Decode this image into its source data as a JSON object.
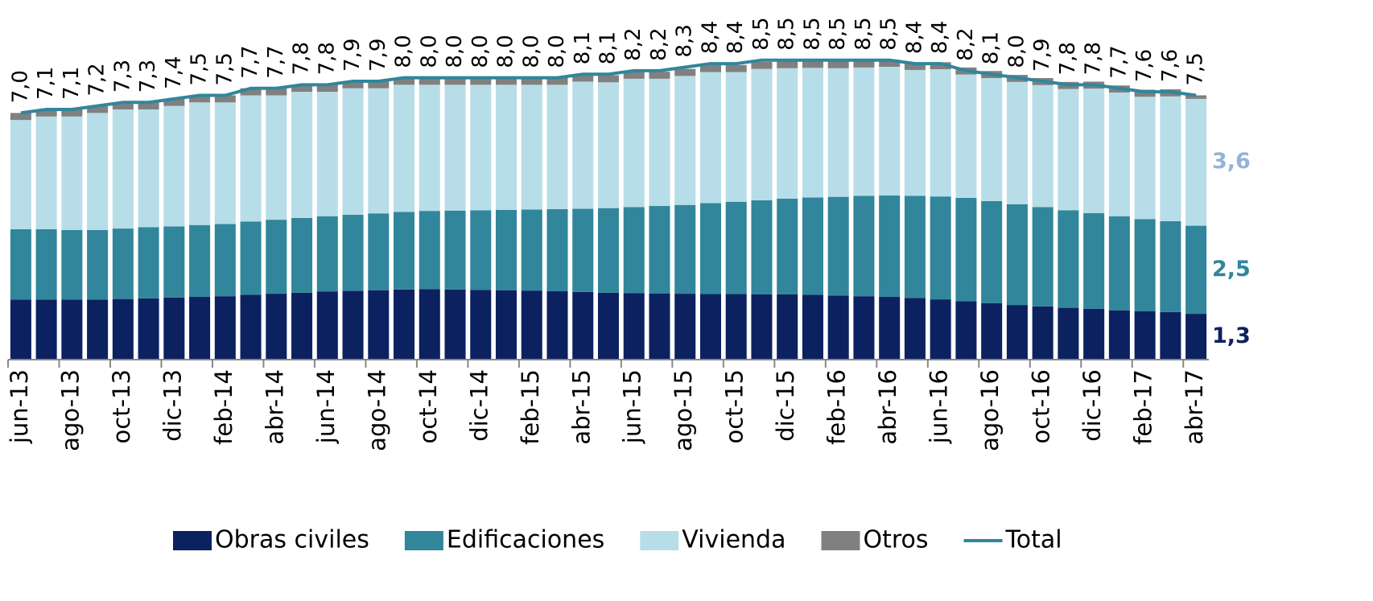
{
  "chart_data": {
    "type": "stacked_bar",
    "categories": [
      "jun-13",
      null,
      "ago-13",
      null,
      "oct-13",
      null,
      "dic-13",
      null,
      "feb-14",
      null,
      "abr-14",
      null,
      "jun-14",
      null,
      "ago-14",
      null,
      "oct-14",
      null,
      "dic-14",
      null,
      "feb-15",
      null,
      "abr-15",
      null,
      "jun-15",
      null,
      "ago-15",
      null,
      "oct-15",
      null,
      "dic-15",
      null,
      "feb-16",
      null,
      "abr-16",
      null,
      "jun-16",
      null,
      "ago-16",
      null,
      "oct-16",
      null,
      "dic-16",
      null,
      "feb-17",
      null,
      "abr-17"
    ],
    "series": [
      {
        "name": "Obras civiles",
        "color": "#0c2160",
        "values": [
          1.7,
          1.7,
          1.7,
          1.7,
          1.72,
          1.74,
          1.76,
          1.78,
          1.8,
          1.84,
          1.87,
          1.9,
          1.93,
          1.95,
          1.97,
          1.99,
          2.0,
          1.99,
          1.98,
          1.97,
          1.96,
          1.94,
          1.92,
          1.9,
          1.89,
          1.88,
          1.87,
          1.86,
          1.86,
          1.85,
          1.85,
          1.84,
          1.82,
          1.8,
          1.78,
          1.75,
          1.71,
          1.66,
          1.6,
          1.55,
          1.51,
          1.47,
          1.44,
          1.4,
          1.37,
          1.35,
          1.3
        ],
        "value_labels": [
          null,
          null,
          null,
          null,
          null,
          null,
          null,
          null,
          null,
          null,
          null,
          null,
          null,
          null,
          null,
          null,
          null,
          null,
          null,
          null,
          null,
          null,
          null,
          null,
          null,
          null,
          null,
          null,
          null,
          null,
          null,
          null,
          null,
          null,
          null,
          null,
          null,
          null,
          null,
          null,
          null,
          null,
          null,
          null,
          null,
          null,
          "1,3"
        ]
      },
      {
        "name": "Edificaciones",
        "color": "#31869b",
        "values": [
          2.0,
          2.0,
          1.98,
          1.98,
          2.0,
          2.02,
          2.02,
          2.04,
          2.05,
          2.08,
          2.1,
          2.12,
          2.14,
          2.16,
          2.18,
          2.2,
          2.22,
          2.24,
          2.26,
          2.28,
          2.3,
          2.33,
          2.36,
          2.4,
          2.44,
          2.48,
          2.52,
          2.58,
          2.62,
          2.67,
          2.72,
          2.76,
          2.8,
          2.85,
          2.88,
          2.9,
          2.92,
          2.93,
          2.9,
          2.86,
          2.82,
          2.77,
          2.72,
          2.67,
          2.62,
          2.58,
          2.5
        ],
        "value_labels": [
          null,
          null,
          null,
          null,
          null,
          null,
          null,
          null,
          null,
          null,
          null,
          null,
          null,
          null,
          null,
          null,
          null,
          null,
          null,
          null,
          null,
          null,
          null,
          null,
          null,
          null,
          null,
          null,
          null,
          null,
          null,
          null,
          null,
          null,
          null,
          null,
          null,
          null,
          null,
          null,
          null,
          null,
          null,
          null,
          null,
          null,
          "2,5"
        ]
      },
      {
        "name": "Vivienda",
        "color": "#b7dde8",
        "label_color": "#95b3d7",
        "values": [
          3.1,
          3.2,
          3.22,
          3.32,
          3.38,
          3.34,
          3.42,
          3.48,
          3.45,
          3.58,
          3.53,
          3.58,
          3.53,
          3.59,
          3.55,
          3.61,
          3.58,
          3.57,
          3.56,
          3.55,
          3.54,
          3.53,
          3.61,
          3.57,
          3.64,
          3.61,
          3.66,
          3.72,
          3.68,
          3.73,
          3.7,
          3.68,
          3.65,
          3.64,
          3.65,
          3.57,
          3.61,
          3.5,
          3.49,
          3.47,
          3.46,
          3.44,
          3.53,
          3.51,
          3.47,
          3.54,
          3.6
        ],
        "value_labels": [
          null,
          null,
          null,
          null,
          null,
          null,
          null,
          null,
          null,
          null,
          null,
          null,
          null,
          null,
          null,
          null,
          null,
          null,
          null,
          null,
          null,
          null,
          null,
          null,
          null,
          null,
          null,
          null,
          null,
          null,
          null,
          null,
          null,
          null,
          null,
          null,
          null,
          null,
          null,
          null,
          null,
          null,
          null,
          null,
          null,
          null,
          "3,6"
        ]
      },
      {
        "name": "Otros",
        "color": "#808080",
        "values": [
          0.2,
          0.2,
          0.2,
          0.2,
          0.2,
          0.2,
          0.2,
          0.2,
          0.2,
          0.2,
          0.2,
          0.2,
          0.2,
          0.2,
          0.2,
          0.2,
          0.2,
          0.2,
          0.2,
          0.2,
          0.2,
          0.2,
          0.2,
          0.2,
          0.2,
          0.2,
          0.2,
          0.2,
          0.2,
          0.2,
          0.2,
          0.2,
          0.2,
          0.2,
          0.2,
          0.2,
          0.2,
          0.2,
          0.2,
          0.2,
          0.2,
          0.2,
          0.2,
          0.2,
          0.2,
          0.2,
          0.1
        ]
      },
      {
        "name": "Total",
        "color": "#31869b",
        "type": "line",
        "values": [
          7.0,
          7.1,
          7.1,
          7.2,
          7.3,
          7.3,
          7.4,
          7.5,
          7.5,
          7.7,
          7.7,
          7.8,
          7.8,
          7.9,
          7.9,
          8.0,
          8.0,
          8.0,
          8.0,
          8.0,
          8.0,
          8.0,
          8.1,
          8.1,
          8.2,
          8.2,
          8.3,
          8.4,
          8.4,
          8.5,
          8.5,
          8.5,
          8.5,
          8.5,
          8.5,
          8.4,
          8.4,
          8.2,
          8.1,
          8.0,
          7.9,
          7.8,
          7.8,
          7.7,
          7.6,
          7.6,
          7.5
        ],
        "value_labels": [
          "7,0",
          "7,1",
          "7,1",
          "7,2",
          "7,3",
          "7,3",
          "7,4",
          "7,5",
          "7,5",
          "7,7",
          "7,7",
          "7,8",
          "7,8",
          "7,9",
          "7,9",
          "8,0",
          "8,0",
          "8,0",
          "8,0",
          "8,0",
          "8,0",
          "8,0",
          "8,1",
          "8,1",
          "8,2",
          "8,2",
          "8,3",
          "8,4",
          "8,4",
          "8,5",
          "8,5",
          "8,5",
          "8,5",
          "8,5",
          "8,5",
          "8,4",
          "8,4",
          "8,2",
          "8,1",
          "8,0",
          "7,9",
          "7,8",
          "7,8",
          "7,7",
          "7,6",
          "7,6",
          "7,5"
        ]
      }
    ],
    "legend": "bottom"
  }
}
